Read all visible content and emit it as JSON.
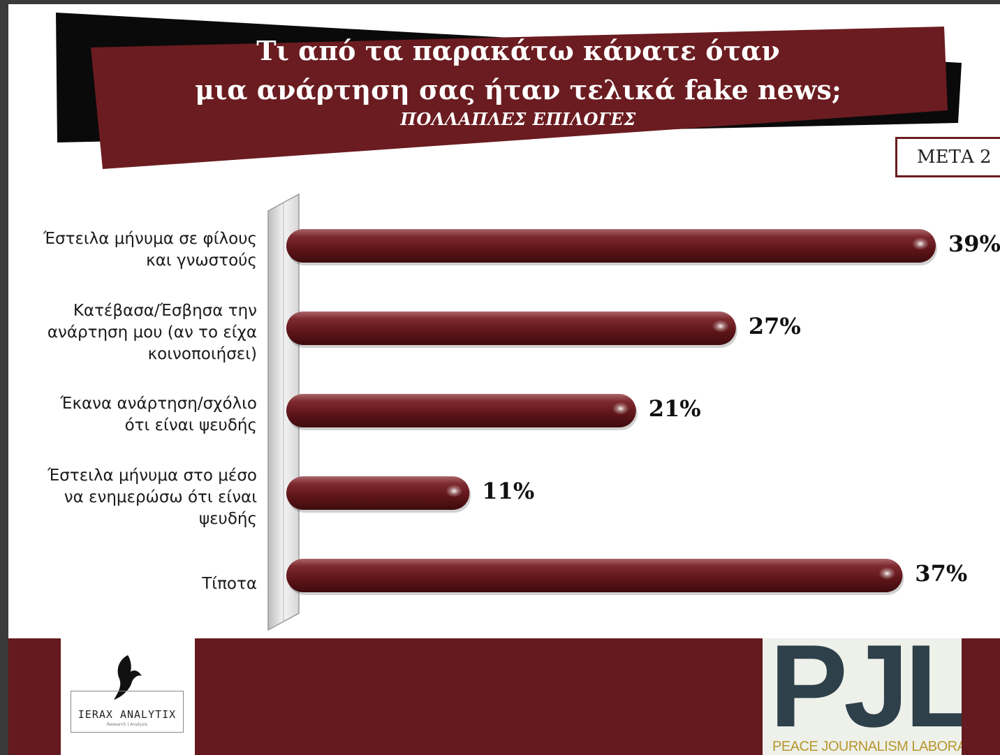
{
  "header": {
    "title_line1": "Τι από τα παρακάτω κάνατε όταν",
    "title_line2": "μια ανάρτηση σας ήταν τελικά fake news;",
    "subtitle": "ΠΟΛΛΑΠΛΕΣ ΕΠΙΛΟΓΕΣ",
    "badge": "ΜΕΤΑ 2"
  },
  "colors": {
    "bar": "#6b1c20",
    "banner": "#6b1c20",
    "banner_shadow": "#0a0a0a",
    "footer": "#641a1e",
    "pjl_dark": "#2e4049",
    "pjl_gold": "#b7982f"
  },
  "chart_data": {
    "type": "bar",
    "orientation": "horizontal",
    "title": "Τι από τα παρακάτω κάνατε όταν μια ανάρτηση σας ήταν τελικά fake news;",
    "subtitle": "ΠΟΛΛΑΠΛΕΣ ΕΠΙΛΟΓΕΣ",
    "categories": [
      [
        "Έστειλα μήνυμα σε φίλους",
        "και γνωστούς"
      ],
      [
        "Κατέβασα/Έσβησα την",
        "ανάρτηση μου (αν το είχα",
        "κοινοποιήσει)"
      ],
      [
        "Έκανα ανάρτηση/σχόλιο",
        "ότι είναι ψευδής"
      ],
      [
        "Έστειλα μήνυμα στο μέσο",
        "να ενημερώσω ότι είναι",
        "ψευδής"
      ],
      [
        "Τίποτα"
      ]
    ],
    "values": [
      39,
      27,
      21,
      11,
      37
    ],
    "value_labels": [
      "39%",
      "27%",
      "21%",
      "11%",
      "37%"
    ],
    "xlim": [
      0,
      39
    ],
    "grid": false,
    "legend": "none"
  },
  "footer": {
    "ierax_name": "IERAX ANALYTIX",
    "ierax_tagline": "Research | Analysis",
    "pjl_letters": "PJL",
    "pjl_full": "PEACE JOURNALISM LABORATORY"
  }
}
